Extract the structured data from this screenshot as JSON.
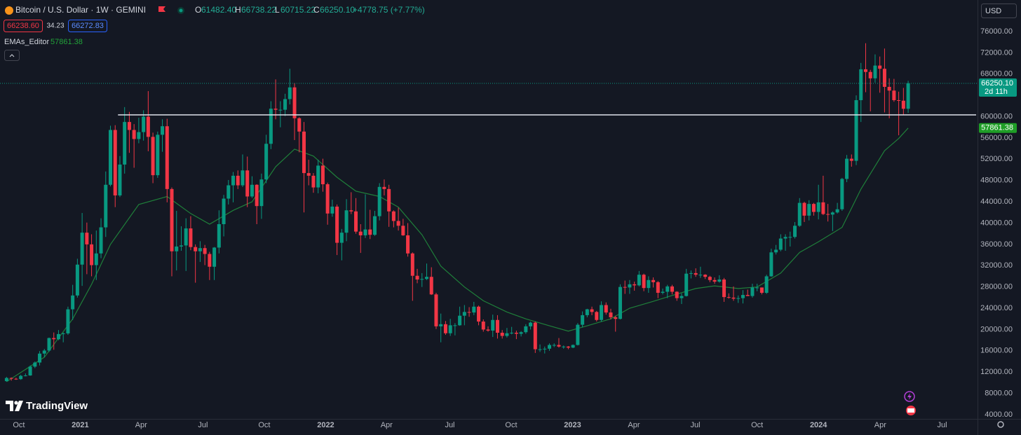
{
  "chart_data": {
    "type": "candlestick",
    "title": "Bitcoin / U.S. Dollar · 1W · GEMINI",
    "legend_letters": [
      "O",
      "H",
      "L",
      "C"
    ],
    "legend_values": [
      "61482.40",
      "66738.22",
      "60715.22",
      "66250.10"
    ],
    "change": "+4778.75 (+7.77%)",
    "bid": "66238.60",
    "spread": "34.23",
    "ask": "66272.83",
    "currency": "USD",
    "brand": "TradingView",
    "up_color": "#089981",
    "down_color": "#f23645",
    "xlim": [
      -1.4,
      205.4
    ],
    "ylim": [
      3210,
      81920
    ],
    "xticks": [
      {
        "value": 2.6,
        "label": "Oct"
      },
      {
        "value": 15.6,
        "label": "2021"
      },
      {
        "value": 28.5,
        "label": "Apr"
      },
      {
        "value": 41.6,
        "label": "Jul"
      },
      {
        "value": 54.6,
        "label": "Oct"
      },
      {
        "value": 67.6,
        "label": "2022"
      },
      {
        "value": 80.5,
        "label": "Apr"
      },
      {
        "value": 93.9,
        "label": "Jul"
      },
      {
        "value": 106.9,
        "label": "Oct"
      },
      {
        "value": 119.9,
        "label": "2023"
      },
      {
        "value": 132.9,
        "label": "Apr"
      },
      {
        "value": 145.9,
        "label": "Jul"
      },
      {
        "value": 159.0,
        "label": "Oct"
      },
      {
        "value": 172.0,
        "label": "2024"
      },
      {
        "value": 185.1,
        "label": "Apr"
      },
      {
        "value": 198.2,
        "label": "Jul"
      }
    ],
    "yticks": [
      {
        "value": 76000,
        "label": "76000.00"
      },
      {
        "value": 72000,
        "label": "72000.00"
      },
      {
        "value": 68000,
        "label": "68000.00"
      },
      {
        "value": 60000,
        "label": "60000.00"
      },
      {
        "value": 56000,
        "label": "56000.00"
      },
      {
        "value": 52000,
        "label": "52000.00"
      },
      {
        "value": 48000,
        "label": "48000.00"
      },
      {
        "value": 44000,
        "label": "44000.00"
      },
      {
        "value": 40000,
        "label": "40000.00"
      },
      {
        "value": 36000,
        "label": "36000.00"
      },
      {
        "value": 32000,
        "label": "32000.00"
      },
      {
        "value": 28000,
        "label": "28000.00"
      },
      {
        "value": 24000,
        "label": "24000.00"
      },
      {
        "value": 20000,
        "label": "20000.00"
      },
      {
        "value": 16000,
        "label": "16000.00"
      },
      {
        "value": 12000,
        "label": "12000.00"
      },
      {
        "value": 8000,
        "label": "8000.00"
      },
      {
        "value": 4000,
        "label": "4000.00"
      }
    ],
    "grid": false,
    "price_line": {
      "label": "66250.10",
      "countdown": "2d 11h"
    },
    "hline": {
      "value": 60340,
      "from": 23.6
    },
    "indicator": {
      "name": "EMAs_Editor",
      "value_label": "57861.38",
      "color": "#1f7f3a",
      "x": [
        0,
        8,
        14,
        18,
        22,
        28,
        34,
        39,
        43,
        48,
        52,
        57,
        61,
        65,
        70,
        74,
        79,
        83,
        88,
        92,
        97,
        101,
        106,
        110,
        115,
        119,
        123,
        128,
        132,
        137,
        141,
        146,
        150,
        155,
        159,
        164,
        168,
        172,
        177,
        181,
        186,
        189,
        191
      ],
      "values": [
        10200,
        14800,
        22000,
        28500,
        36000,
        43500,
        45000,
        41800,
        39800,
        42400,
        44000,
        50600,
        53900,
        52600,
        48600,
        46000,
        45000,
        43000,
        37800,
        31900,
        28000,
        25400,
        23300,
        22000,
        20700,
        19700,
        20700,
        22000,
        24000,
        25300,
        26400,
        27700,
        28200,
        27700,
        28000,
        30600,
        34500,
        36500,
        39200,
        46400,
        53600,
        55900,
        57861.38
      ]
    },
    "ohlc": [
      [
        10300,
        11100,
        10200,
        10900
      ],
      [
        10900,
        11000,
        10400,
        10750
      ],
      [
        10750,
        10950,
        10550,
        10680
      ],
      [
        10680,
        11500,
        10550,
        11300
      ],
      [
        11300,
        11750,
        11200,
        11370
      ],
      [
        11370,
        13250,
        11300,
        13030
      ],
      [
        13030,
        14000,
        12750,
        13800
      ],
      [
        13800,
        15950,
        13250,
        15480
      ],
      [
        15480,
        16350,
        14800,
        16050
      ],
      [
        16050,
        18500,
        15800,
        18400
      ],
      [
        18400,
        19450,
        16200,
        18180
      ],
      [
        18180,
        19900,
        18000,
        19150
      ],
      [
        19150,
        19450,
        17600,
        19270
      ],
      [
        19270,
        24300,
        19000,
        23800
      ],
      [
        23800,
        28400,
        21800,
        26400
      ],
      [
        26400,
        33300,
        26000,
        32200
      ],
      [
        32200,
        41900,
        28200,
        38200
      ],
      [
        38200,
        40100,
        30400,
        36000
      ],
      [
        36000,
        37900,
        30000,
        32100
      ],
      [
        32100,
        38600,
        29300,
        34300
      ],
      [
        34300,
        40900,
        33400,
        39200
      ],
      [
        39200,
        49700,
        37400,
        47200
      ],
      [
        47200,
        58300,
        46900,
        57500
      ],
      [
        57500,
        58400,
        43000,
        45200
      ],
      [
        45200,
        52600,
        44900,
        51000
      ],
      [
        51000,
        61800,
        49300,
        59000
      ],
      [
        59000,
        60900,
        53200,
        57500
      ],
      [
        57500,
        58600,
        50400,
        55800
      ],
      [
        55800,
        59800,
        55000,
        57100
      ],
      [
        57100,
        61200,
        55500,
        60000
      ],
      [
        60000,
        64800,
        53500,
        56200
      ],
      [
        56200,
        57000,
        47500,
        49000
      ],
      [
        49000,
        57200,
        48500,
        56600
      ],
      [
        56600,
        59500,
        53400,
        58200
      ],
      [
        58200,
        59600,
        43900,
        46400
      ],
      [
        46400,
        46700,
        30000,
        34700
      ],
      [
        34700,
        42300,
        31100,
        35600
      ],
      [
        35600,
        39400,
        34800,
        35800
      ],
      [
        35800,
        40900,
        31000,
        39000
      ],
      [
        39000,
        41300,
        34900,
        35500
      ],
      [
        35500,
        36000,
        28800,
        34700
      ],
      [
        34700,
        36600,
        32700,
        35300
      ],
      [
        35300,
        35900,
        32100,
        34200
      ],
      [
        34200,
        34600,
        29300,
        31800
      ],
      [
        31800,
        35500,
        29300,
        35400
      ],
      [
        35400,
        42400,
        34300,
        39800
      ],
      [
        39800,
        45300,
        37500,
        44600
      ],
      [
        44600,
        48100,
        43500,
        47100
      ],
      [
        47100,
        49600,
        43900,
        48900
      ],
      [
        48900,
        49900,
        46400,
        47100
      ],
      [
        47100,
        52900,
        46800,
        49900
      ],
      [
        49900,
        52500,
        43000,
        45000
      ],
      [
        45000,
        48800,
        44700,
        47200
      ],
      [
        47200,
        47300,
        39800,
        43200
      ],
      [
        43200,
        49300,
        40800,
        48200
      ],
      [
        48200,
        56600,
        47500,
        54900
      ],
      [
        54900,
        62900,
        53900,
        61500
      ],
      [
        61500,
        67000,
        59500,
        61300
      ],
      [
        61300,
        62900,
        58000,
        61300
      ],
      [
        61300,
        64300,
        60100,
        63300
      ],
      [
        63300,
        69000,
        62300,
        65500
      ],
      [
        65500,
        66300,
        55600,
        59700
      ],
      [
        59700,
        59900,
        53300,
        57200
      ],
      [
        57200,
        59000,
        42000,
        49400
      ],
      [
        49400,
        51900,
        47100,
        48900
      ],
      [
        48900,
        49400,
        45700,
        46700
      ],
      [
        46700,
        51900,
        45600,
        50800
      ],
      [
        50800,
        52100,
        45900,
        47300
      ],
      [
        47300,
        47600,
        39700,
        41800
      ],
      [
        41800,
        44400,
        41200,
        43100
      ],
      [
        43100,
        43500,
        34000,
        36300
      ],
      [
        36300,
        38900,
        33000,
        38200
      ],
      [
        38200,
        44500,
        36600,
        42400
      ],
      [
        42400,
        45800,
        41700,
        42200
      ],
      [
        42200,
        44700,
        38000,
        38400
      ],
      [
        38400,
        39800,
        34400,
        37700
      ],
      [
        37700,
        45400,
        37200,
        38800
      ],
      [
        38800,
        42500,
        37000,
        37800
      ],
      [
        37800,
        42300,
        37600,
        41300
      ],
      [
        41300,
        47500,
        40500,
        46800
      ],
      [
        46800,
        48200,
        45200,
        46400
      ],
      [
        46400,
        47200,
        39300,
        42200
      ],
      [
        42200,
        42400,
        39200,
        40400
      ],
      [
        40400,
        42900,
        38600,
        39500
      ],
      [
        39500,
        40800,
        37600,
        37700
      ],
      [
        37700,
        40000,
        33700,
        34300
      ],
      [
        34300,
        34500,
        25400,
        30100
      ],
      [
        30100,
        31400,
        28700,
        29400
      ],
      [
        29400,
        30600,
        28000,
        29500
      ],
      [
        29500,
        32400,
        29300,
        29900
      ],
      [
        29900,
        31700,
        26500,
        26600
      ],
      [
        26600,
        26900,
        20100,
        20600
      ],
      [
        20600,
        23000,
        17600,
        21000
      ],
      [
        21000,
        21600,
        19000,
        19300
      ],
      [
        19300,
        22000,
        18800,
        20800
      ],
      [
        20800,
        21200,
        18900,
        20800
      ],
      [
        20800,
        24300,
        20700,
        22600
      ],
      [
        22600,
        24600,
        20800,
        23300
      ],
      [
        23300,
        24200,
        22400,
        23200
      ],
      [
        23200,
        25200,
        22700,
        24300
      ],
      [
        24300,
        24500,
        20800,
        21500
      ],
      [
        21500,
        21900,
        19600,
        20000
      ],
      [
        20000,
        20600,
        19600,
        19800
      ],
      [
        19800,
        22800,
        18600,
        21800
      ],
      [
        21800,
        22700,
        18300,
        19400
      ],
      [
        19400,
        19900,
        18300,
        18800
      ],
      [
        18800,
        20300,
        18500,
        19300
      ],
      [
        19300,
        20500,
        19100,
        19400
      ],
      [
        19400,
        19800,
        18200,
        19200
      ],
      [
        19200,
        19700,
        18700,
        19500
      ],
      [
        19500,
        21000,
        19200,
        20600
      ],
      [
        20600,
        21500,
        20000,
        21300
      ],
      [
        21300,
        21500,
        15600,
        16300
      ],
      [
        16300,
        17200,
        15800,
        16300
      ],
      [
        16300,
        16800,
        15500,
        16400
      ],
      [
        16400,
        17400,
        16000,
        17100
      ],
      [
        17100,
        17400,
        16700,
        17100
      ],
      [
        17100,
        18400,
        16600,
        16800
      ],
      [
        16800,
        17000,
        16400,
        16800
      ],
      [
        16800,
        16900,
        16300,
        16600
      ],
      [
        16600,
        17200,
        16500,
        17100
      ],
      [
        17100,
        21200,
        17000,
        20900
      ],
      [
        20900,
        23400,
        20400,
        22700
      ],
      [
        22700,
        23900,
        22300,
        23800
      ],
      [
        23800,
        24300,
        22700,
        23300
      ],
      [
        23300,
        23500,
        21500,
        21800
      ],
      [
        21800,
        25300,
        21500,
        24600
      ],
      [
        24600,
        25100,
        22800,
        23200
      ],
      [
        23200,
        23900,
        21900,
        22300
      ],
      [
        22300,
        22600,
        19600,
        22000
      ],
      [
        22000,
        28500,
        21900,
        28000
      ],
      [
        28000,
        29200,
        26700,
        27900
      ],
      [
        27900,
        29300,
        26700,
        28500
      ],
      [
        28500,
        29000,
        27300,
        28300
      ],
      [
        28300,
        31000,
        28100,
        30300
      ],
      [
        30300,
        30500,
        27200,
        27800
      ],
      [
        27800,
        30000,
        26900,
        29300
      ],
      [
        29300,
        29800,
        27900,
        28900
      ],
      [
        28900,
        29100,
        25900,
        26900
      ],
      [
        26900,
        27700,
        26600,
        27100
      ],
      [
        27100,
        28400,
        25900,
        28100
      ],
      [
        28100,
        28400,
        26600,
        27100
      ],
      [
        27100,
        27200,
        25400,
        25900
      ],
      [
        25900,
        26800,
        24800,
        26300
      ],
      [
        26300,
        31400,
        26200,
        30500
      ],
      [
        30500,
        31100,
        29600,
        30600
      ],
      [
        30600,
        31500,
        29900,
        30300
      ],
      [
        30300,
        31800,
        29700,
        30300
      ],
      [
        30300,
        30400,
        29500,
        29900
      ],
      [
        29900,
        30100,
        28900,
        29300
      ],
      [
        29300,
        29800,
        28600,
        29000
      ],
      [
        29000,
        30200,
        28800,
        29400
      ],
      [
        29400,
        29700,
        25200,
        26100
      ],
      [
        26100,
        26800,
        25800,
        26000
      ],
      [
        26000,
        28100,
        25400,
        25800
      ],
      [
        25800,
        26400,
        25000,
        25900
      ],
      [
        25900,
        27400,
        24900,
        26500
      ],
      [
        26500,
        27500,
        26300,
        26300
      ],
      [
        26300,
        28600,
        26000,
        27900
      ],
      [
        27900,
        28600,
        27200,
        27900
      ],
      [
        27900,
        27900,
        26600,
        26900
      ],
      [
        26900,
        30300,
        26700,
        30000
      ],
      [
        30000,
        35200,
        29900,
        34500
      ],
      [
        34500,
        35900,
        34100,
        35000
      ],
      [
        35000,
        37900,
        34700,
        37100
      ],
      [
        37100,
        37900,
        34800,
        37400
      ],
      [
        37400,
        38400,
        35600,
        37400
      ],
      [
        37400,
        40200,
        37100,
        39500
      ],
      [
        39500,
        44700,
        39300,
        43800
      ],
      [
        43800,
        44000,
        40200,
        41400
      ],
      [
        41400,
        44300,
        40500,
        43600
      ],
      [
        43600,
        43800,
        41400,
        42100
      ],
      [
        42100,
        47200,
        40700,
        43900
      ],
      [
        43900,
        48900,
        41500,
        41700
      ],
      [
        41700,
        43600,
        40300,
        41600
      ],
      [
        41600,
        42200,
        38500,
        42000
      ],
      [
        42000,
        43800,
        41800,
        42600
      ],
      [
        42600,
        48500,
        42300,
        48300
      ],
      [
        48300,
        52800,
        47700,
        52100
      ],
      [
        52100,
        52900,
        50600,
        51700
      ],
      [
        51700,
        64000,
        50900,
        63100
      ],
      [
        63100,
        70100,
        59000,
        68900
      ],
      [
        68900,
        73800,
        64600,
        68400
      ],
      [
        68400,
        68800,
        61000,
        67200
      ],
      [
        67200,
        71700,
        66400,
        69600
      ],
      [
        69600,
        71300,
        64500,
        69000
      ],
      [
        69000,
        72800,
        60800,
        65600
      ],
      [
        65600,
        67200,
        59700,
        64900
      ],
      [
        64900,
        67100,
        62800,
        63100
      ],
      [
        63100,
        64700,
        56500,
        63000
      ],
      [
        63000,
        65400,
        60300,
        61480
      ],
      [
        61482.4,
        66738.22,
        60715.22,
        66250.1
      ]
    ]
  }
}
